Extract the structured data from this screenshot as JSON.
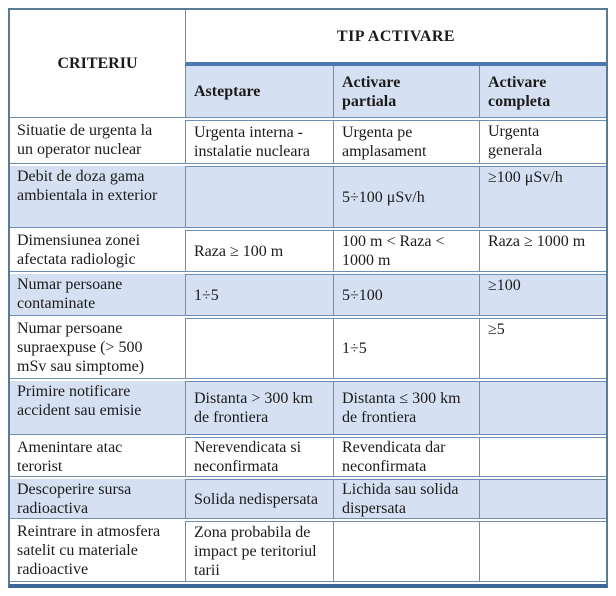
{
  "table": {
    "header": {
      "criteriu": "CRITERIU",
      "tip_activare": "TIP ACTIVARE",
      "columns": [
        "Asteptare",
        "Activare\npartiala",
        "Activare\ncompleta"
      ]
    },
    "rows": [
      {
        "shaded": false,
        "cells": [
          "Situatie de urgenta la un operator nuclear",
          "Urgenta interna - instalatie nucleara",
          "Urgenta pe amplasament",
          "Urgenta generala"
        ]
      },
      {
        "shaded": true,
        "cells": [
          "Debit de doza gama ambientala in exterior",
          "",
          "5÷100 μSv/h",
          "≥100 μSv/h"
        ]
      },
      {
        "shaded": false,
        "cells": [
          "Dimensiunea zonei afectata radiologic",
          "Raza ≥ 100 m",
          "100 m < Raza < 1000 m",
          "Raza ≥ 1000 m"
        ]
      },
      {
        "shaded": true,
        "cells": [
          "Numar persoane contaminate",
          "1÷5",
          "5÷100",
          "≥100"
        ]
      },
      {
        "shaded": false,
        "cells": [
          "Numar persoane supraexpuse (> 500 mSv sau simptome)",
          "",
          "1÷5",
          "≥5"
        ]
      },
      {
        "shaded": true,
        "cells": [
          "Primire notificare accident sau emisie",
          "Distanta > 300 km de frontiera",
          "Distanta ≤ 300 km de frontiera",
          ""
        ]
      },
      {
        "shaded": false,
        "cells": [
          "Amenintare atac terorist",
          "Nerevendicata si neconfirmata",
          "Revendicata dar neconfirmata",
          ""
        ]
      },
      {
        "shaded": true,
        "cells": [
          "Descoperire sursa radioactiva",
          "Solida nedispersata",
          "Lichida sau solida dispersata",
          ""
        ]
      },
      {
        "shaded": false,
        "cells": [
          "Reintrare in atmosfera satelit cu materiale radioactive",
          "Zona probabila de impact pe teritoriul tarii",
          "",
          ""
        ]
      }
    ],
    "colors": {
      "accent_bar": "#4c79b1",
      "bottom_bar": "#3f659b",
      "outer_border": "#587c93",
      "cell_border": "#6e8eb2",
      "row_shade": "#d5e1f2",
      "text": "#1b1b1b"
    }
  }
}
